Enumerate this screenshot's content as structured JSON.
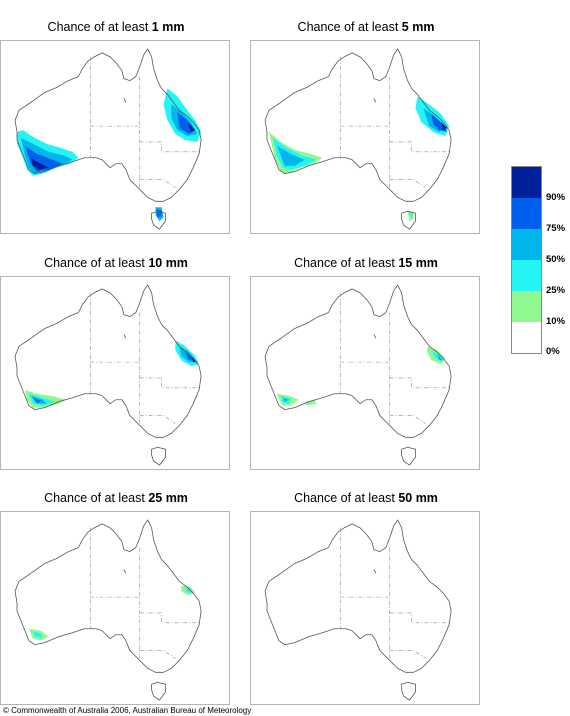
{
  "panels": [
    {
      "prefix": "Chance of at least ",
      "amount": "1 mm"
    },
    {
      "prefix": "Chance of at least ",
      "amount": "5 mm"
    },
    {
      "prefix": "Chance of at least ",
      "amount": "10 mm"
    },
    {
      "prefix": "Chance of at least ",
      "amount": "15 mm"
    },
    {
      "prefix": "Chance of at least ",
      "amount": "25 mm"
    },
    {
      "prefix": "Chance of at least ",
      "amount": "50 mm"
    }
  ],
  "legend": {
    "labels": [
      "90%",
      "75%",
      "50%",
      "25%",
      "10%",
      "0%"
    ],
    "colors": [
      "#00209a",
      "#0060ee",
      "#00b4ec",
      "#24f4f4",
      "#90f890",
      "#ffffff"
    ]
  },
  "credit": "© Commonwealth of Australia 2006, Australian Bureau of Meteorology"
}
